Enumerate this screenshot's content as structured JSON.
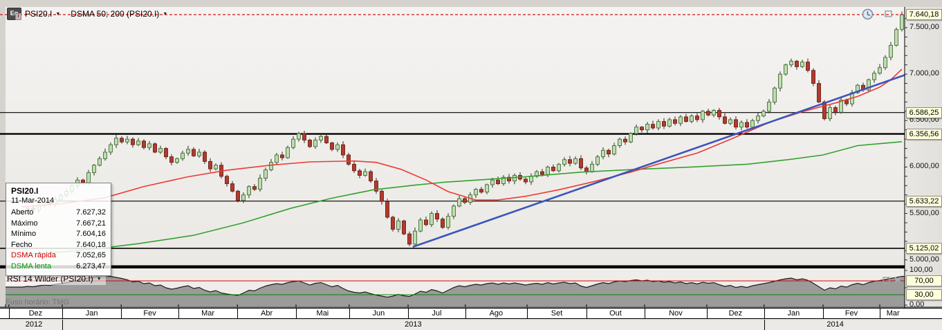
{
  "header": {
    "symbol": "PSI20.I",
    "indicator": "DSMA 50; 200 (PSI20.I)",
    "icon": "equity-chart-icon",
    "arrow": "▼"
  },
  "tooltip": {
    "title": "PSI20.I",
    "date": "11-Mar-2014",
    "rows": [
      {
        "label": "Aberto",
        "value": "7.627,32",
        "color": "#000000"
      },
      {
        "label": "Máximo",
        "value": "7.667,21",
        "color": "#000000"
      },
      {
        "label": "Mínimo",
        "value": "7.604,16",
        "color": "#000000"
      },
      {
        "label": "Fecho",
        "value": "7.640,18",
        "color": "#000000"
      },
      {
        "label": "DSMA rápida",
        "value": "7.052,65",
        "color": "#cc0000"
      },
      {
        "label": "DSMA lenta",
        "value": "6.273,47",
        "color": "#009900"
      }
    ]
  },
  "rsi": {
    "label": "RSI 14 Wilder (PSI20.I)",
    "arrow": "▼",
    "watermark": "Fuso horário: TMG",
    "labels_plain": [
      {
        "value": 100,
        "text": "100,00"
      },
      {
        "value": 0,
        "text": "0,00"
      }
    ],
    "tags": [
      {
        "value": 70,
        "text": "70,00"
      },
      {
        "value": 30,
        "text": "30,00"
      }
    ],
    "ticks": [
      100,
      50,
      0
    ]
  },
  "price_axis": {
    "labels_plain": [
      {
        "price": 7500,
        "text": "7.500,00"
      },
      {
        "price": 7000,
        "text": "7.000,00"
      },
      {
        "price": 6500,
        "text": "6.500,00"
      },
      {
        "price": 6000,
        "text": "6.000,00"
      },
      {
        "price": 5500,
        "text": "5.500,00"
      },
      {
        "price": 5000,
        "text": "5.000,00"
      }
    ],
    "minor_tick_step": 100,
    "range_ticks": [
      5000,
      7600
    ]
  },
  "time_axis": {
    "months": [
      {
        "label": "",
        "from": -3,
        "to": -2.4
      },
      {
        "label": "Dez",
        "from": -2.4,
        "to": 7.25
      },
      {
        "label": "Jan",
        "from": 7.25,
        "to": 17.9
      },
      {
        "label": "Fev",
        "from": 17.9,
        "to": 28.25
      },
      {
        "label": "Mar",
        "from": 28.25,
        "to": 38.9
      },
      {
        "label": "Abr",
        "from": 38.9,
        "to": 49.5
      },
      {
        "label": "Mai",
        "from": 49.5,
        "to": 59.1
      },
      {
        "label": "Jun",
        "from": 59.1,
        "to": 69.75
      },
      {
        "label": "Jul",
        "from": 69.75,
        "to": 80.1
      },
      {
        "label": "Ago",
        "from": 80.1,
        "to": 91.25
      },
      {
        "label": "Set",
        "from": 91.25,
        "to": 102
      },
      {
        "label": "Out",
        "from": 102,
        "to": 112.5
      },
      {
        "label": "Nov",
        "from": 112.5,
        "to": 123.75
      },
      {
        "label": "Dez",
        "from": 123.75,
        "to": 134.1
      },
      {
        "label": "Jan",
        "from": 134.1,
        "to": 144.75
      },
      {
        "label": "Fev",
        "from": 144.75,
        "to": 155
      },
      {
        "label": "Mar",
        "from": 155,
        "to": 159.8
      }
    ],
    "years": [
      {
        "label": "2012",
        "from": -3,
        "to": 7.25
      },
      {
        "label": "2013",
        "from": 7.25,
        "to": 134.1
      },
      {
        "label": "2014",
        "from": 134.1,
        "to": 159.8
      }
    ]
  },
  "colors": {
    "up_fill": "#bfdcb0",
    "up_border": "#3f6f33",
    "down_fill": "#b03a2e",
    "down_border": "#6e1d14",
    "wick": "#2a2a2a",
    "ma_fast": "#ee3a33",
    "ma_slow": "#33a12f",
    "trendline": "#3b55bb",
    "last_price_line": "#cf2a22",
    "level_line": "#000000",
    "rsi_fill": "#8c8c8c",
    "rsi_outline": "#1c1c1c",
    "rsi_overbought": "#dd0000",
    "rsi_oversold": "#0a7d0a",
    "tag_bg": "#ffffdc"
  },
  "chart_data": {
    "type": "candlestick",
    "symbol": "PSI20.I",
    "period": "daily, Dez 2012 – Mar 2014",
    "ylim": [
      4950,
      7720
    ],
    "first_open": 5500,
    "closes": [
      5530,
      5555,
      5540,
      5585,
      5620,
      5600,
      5650,
      5695,
      5740,
      5800,
      5860,
      5830,
      5940,
      6020,
      6090,
      6160,
      6240,
      6310,
      6270,
      6300,
      6240,
      6280,
      6210,
      6250,
      6160,
      6200,
      6110,
      6050,
      6090,
      6150,
      6190,
      6120,
      6160,
      6060,
      5980,
      6020,
      5900,
      5820,
      5740,
      5640,
      5700,
      5790,
      5760,
      5880,
      5970,
      6050,
      6130,
      6100,
      6210,
      6300,
      6360,
      6290,
      6220,
      6290,
      6330,
      6260,
      6190,
      6240,
      6130,
      6030,
      5960,
      5910,
      5950,
      5850,
      5740,
      5630,
      5460,
      5330,
      5420,
      5280,
      5170,
      5310,
      5430,
      5380,
      5500,
      5440,
      5350,
      5470,
      5580,
      5660,
      5620,
      5700,
      5760,
      5730,
      5810,
      5860,
      5820,
      5890,
      5850,
      5910,
      5870,
      5840,
      5900,
      5950,
      5920,
      6000,
      5960,
      6030,
      6080,
      6040,
      6090,
      5990,
      5950,
      6030,
      6110,
      6180,
      6140,
      6230,
      6300,
      6270,
      6360,
      6430,
      6400,
      6460,
      6420,
      6490,
      6440,
      6510,
      6470,
      6540,
      6490,
      6550,
      6510,
      6600,
      6560,
      6610,
      6540,
      6470,
      6510,
      6430,
      6480,
      6430,
      6500,
      6550,
      6600,
      6700,
      6850,
      7000,
      7100,
      7140,
      7080,
      7130,
      7040,
      6900,
      6700,
      6520,
      6640,
      6590,
      6720,
      6680,
      6800,
      6880,
      6830,
      6940,
      7010,
      7070,
      7180,
      7310,
      7480,
      7640
    ],
    "sma_fast_points": [
      [
        0,
        5570
      ],
      [
        7,
        5605
      ],
      [
        15,
        5670
      ],
      [
        22,
        5790
      ],
      [
        30,
        5895
      ],
      [
        37,
        5965
      ],
      [
        45,
        6020
      ],
      [
        52,
        6055
      ],
      [
        60,
        6065
      ],
      [
        64,
        6050
      ],
      [
        68.5,
        5975
      ],
      [
        73,
        5860
      ],
      [
        77,
        5735
      ],
      [
        82,
        5645
      ],
      [
        86,
        5645
      ],
      [
        91,
        5685
      ],
      [
        97,
        5755
      ],
      [
        103.5,
        5845
      ],
      [
        110,
        5945
      ],
      [
        116,
        6050
      ],
      [
        122,
        6150
      ],
      [
        128.5,
        6310
      ],
      [
        135,
        6480
      ],
      [
        141,
        6595
      ],
      [
        147,
        6690
      ],
      [
        151,
        6760
      ],
      [
        155,
        6860
      ],
      [
        157,
        6940
      ],
      [
        159,
        7053
      ]
    ],
    "sma_slow_points": [
      [
        0,
        5060
      ],
      [
        7,
        5085
      ],
      [
        13.5,
        5120
      ],
      [
        21,
        5175
      ],
      [
        31,
        5265
      ],
      [
        40,
        5400
      ],
      [
        48.5,
        5555
      ],
      [
        56,
        5665
      ],
      [
        63.5,
        5755
      ],
      [
        71,
        5805
      ],
      [
        76,
        5835
      ],
      [
        83.5,
        5865
      ],
      [
        91,
        5895
      ],
      [
        101,
        5945
      ],
      [
        111,
        5975
      ],
      [
        121,
        6000
      ],
      [
        131,
        6030
      ],
      [
        138.5,
        6080
      ],
      [
        144.75,
        6130
      ],
      [
        151,
        6230
      ],
      [
        159,
        6273
      ]
    ],
    "trendline": {
      "from": [
        70.6,
        5140
      ],
      "to": [
        159.5,
        6990
      ]
    },
    "levels": [
      {
        "price": 6586.25,
        "label": "6.586,25",
        "width": 1.1
      },
      {
        "price": 6356.56,
        "label": "6.356,56",
        "width": 2.4
      },
      {
        "price": 5633.22,
        "label": "5.633,22",
        "width": 1.1
      },
      {
        "price": 5125.02,
        "label": "5.125,02",
        "width": 1.6
      }
    ],
    "last_price": {
      "price": 7640.18,
      "label": "7.640,18"
    },
    "rsi": {
      "period": 14,
      "overbought": 70,
      "oversold": 30,
      "values": [
        52,
        54,
        53,
        56,
        58,
        57,
        60,
        62,
        65,
        68,
        72,
        75,
        78,
        81,
        84,
        85,
        83,
        80,
        77,
        73,
        67,
        69,
        62,
        64,
        56,
        58,
        50,
        46,
        49,
        53,
        56,
        48,
        51,
        43,
        38,
        42,
        35,
        32,
        30,
        28,
        35,
        43,
        41,
        49,
        55,
        59,
        62,
        60,
        65,
        68,
        70,
        64,
        58,
        63,
        65,
        59,
        53,
        57,
        48,
        41,
        37,
        35,
        38,
        33,
        29,
        26,
        23,
        26,
        31,
        27,
        25,
        32,
        40,
        37,
        45,
        41,
        35,
        43,
        51,
        56,
        53,
        57,
        60,
        58,
        62,
        64,
        60,
        64,
        61,
        64,
        61,
        58,
        61,
        63,
        60,
        65,
        61,
        64,
        66,
        62,
        64,
        55,
        51,
        56,
        61,
        65,
        62,
        67,
        70,
        68,
        71,
        73,
        70,
        72,
        68,
        70,
        66,
        68,
        64,
        67,
        62,
        65,
        61,
        66,
        63,
        65,
        59,
        54,
        57,
        51,
        54,
        51,
        56,
        59,
        62,
        65,
        69,
        73,
        76,
        78,
        73,
        76,
        72,
        63,
        53,
        43,
        50,
        47,
        55,
        52,
        59,
        63,
        59,
        65,
        69,
        71,
        74,
        77,
        80,
        83
      ]
    }
  }
}
